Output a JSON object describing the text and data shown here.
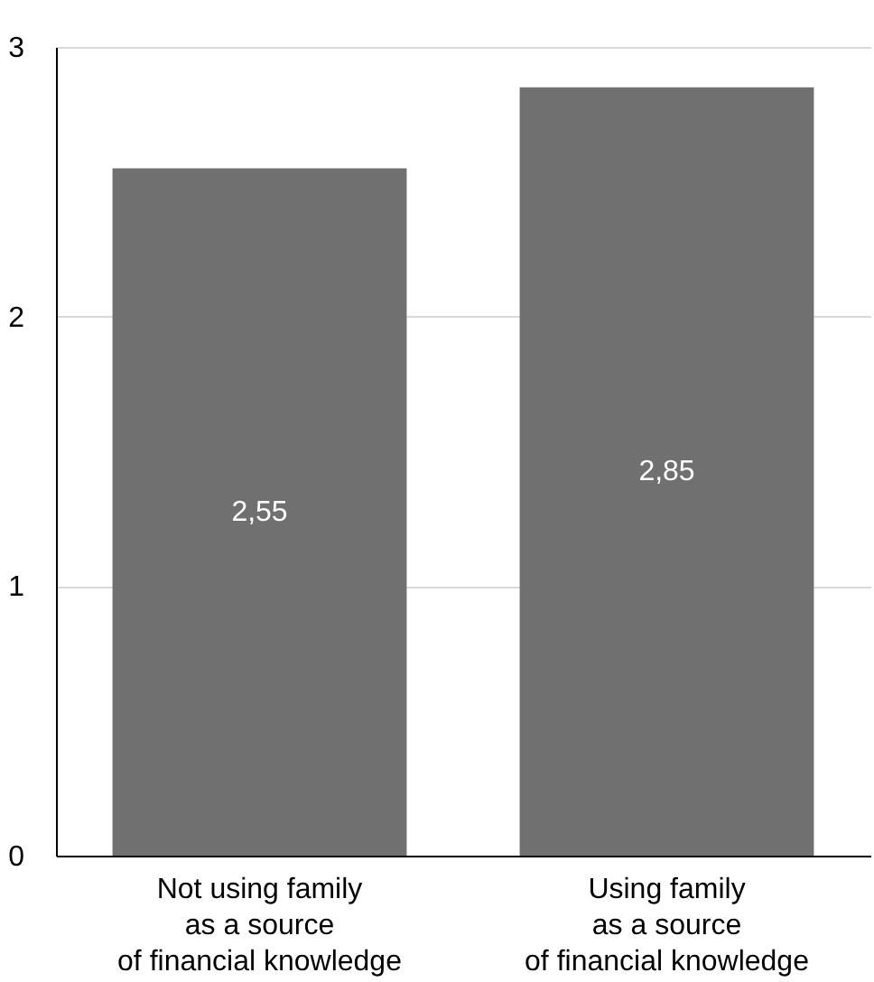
{
  "chart_data": {
    "type": "bar",
    "categories": [
      "Not using family\nas a source\nof financial knowledge",
      "Using family\nas a source\nof financial knowledge"
    ],
    "values": [
      2.55,
      2.85
    ],
    "value_labels": [
      "2,55",
      "2,85"
    ],
    "color": "#707070",
    "ylim": [
      0,
      3
    ],
    "yticks": [
      0,
      1,
      2,
      3
    ],
    "grid": "y"
  }
}
